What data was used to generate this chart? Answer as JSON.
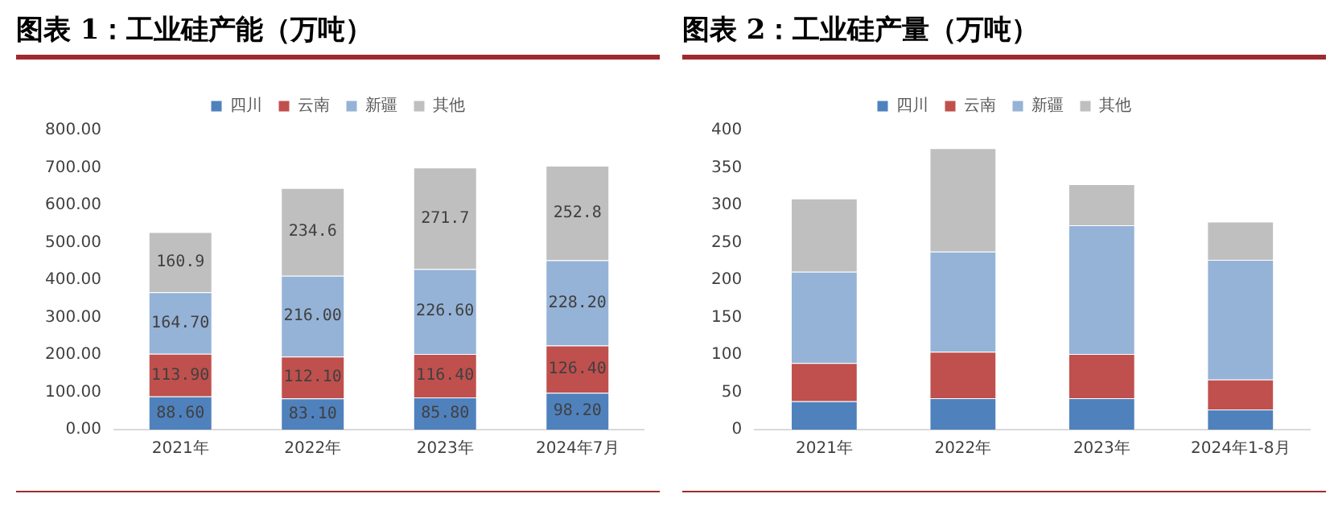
{
  "chart_data": [
    {
      "type": "bar",
      "title": "图表 1：工业硅产能（万吨）",
      "categories": [
        "2021年",
        "2022年",
        "2023年",
        "2024年7月"
      ],
      "stacked": true,
      "legend": "top",
      "ylim": [
        0,
        800
      ],
      "yticks": [
        {
          "value": 0,
          "label": "0.00"
        },
        {
          "value": 100,
          "label": "100.00"
        },
        {
          "value": 200,
          "label": "200.00"
        },
        {
          "value": 300,
          "label": "300.00"
        },
        {
          "value": 400,
          "label": "400.00"
        },
        {
          "value": 500,
          "label": "500.00"
        },
        {
          "value": 600,
          "label": "600.00"
        },
        {
          "value": 700,
          "label": "700.00"
        },
        {
          "value": 800,
          "label": "800.00"
        }
      ],
      "series": [
        {
          "name": "四川",
          "color": "#4f81bd",
          "values": [
            88.6,
            83.1,
            85.8,
            98.2
          ],
          "value_labels": [
            "88.60",
            "83.10",
            "85.80",
            "98.20"
          ]
        },
        {
          "name": "云南",
          "color": "#c0504d",
          "values": [
            113.9,
            112.1,
            116.4,
            126.4
          ],
          "value_labels": [
            "113.90",
            "112.10",
            "116.40",
            "126.40"
          ]
        },
        {
          "name": "新疆",
          "color": "#95b3d7",
          "values": [
            164.7,
            216.0,
            226.6,
            228.2
          ],
          "value_labels": [
            "164.70",
            "216.00",
            "226.60",
            "228.20"
          ]
        },
        {
          "name": "其他",
          "color": "#bfbfbf",
          "values": [
            160.9,
            234.6,
            271.7,
            252.8
          ],
          "value_labels": [
            "160.9",
            "234.6",
            "271.7",
            "252.8"
          ]
        }
      ]
    },
    {
      "type": "bar",
      "title": "图表 2：工业硅产量（万吨）",
      "categories": [
        "2021年",
        "2022年",
        "2023年",
        "2024年1-8月"
      ],
      "stacked": true,
      "legend": "top",
      "ylim": [
        0,
        400
      ],
      "yticks": [
        0,
        50,
        100,
        150,
        200,
        250,
        300,
        350,
        400
      ],
      "series": [
        {
          "name": "四川",
          "color": "#4f81bd",
          "values": [
            38,
            42,
            42,
            27
          ]
        },
        {
          "name": "云南",
          "color": "#c0504d",
          "values": [
            51,
            62,
            59,
            40
          ]
        },
        {
          "name": "新疆",
          "color": "#95b3d7",
          "values": [
            122,
            134,
            172,
            160
          ]
        },
        {
          "name": "其他",
          "color": "#bfbfbf",
          "values": [
            98,
            138,
            55,
            51
          ]
        }
      ]
    }
  ]
}
